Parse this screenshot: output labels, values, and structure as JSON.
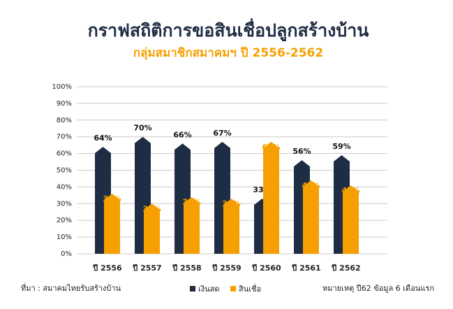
{
  "chart_data": {
    "type": "bar",
    "title": "กราฟสถิติการขอสินเชื่อปลูกสร้างบ้าน",
    "subtitle": "กลุ่มสมาชิกสมาคมฯ ปี 2556-2562",
    "source": "ที่มา : สมาคมไทยรับสร้างบ้าน",
    "note": "หมายเหตุ ปี62  ข้อมูล 6 เดือนแรก",
    "categories": [
      "ปี 2556",
      "ปี 2557",
      "ปี 2558",
      "ปี 2559",
      "ปี 2560",
      "ปี 2561",
      "ปี 2562"
    ],
    "series": [
      {
        "name": "เงินสด",
        "color": "#1f2d44",
        "values": [
          64,
          70,
          66,
          67,
          33,
          56,
          59
        ],
        "value_labels": [
          "64%",
          "70%",
          "66%",
          "67%",
          "33%",
          "56%",
          "59%"
        ]
      },
      {
        "name": "สินเชื่อ",
        "color": "#f5a000",
        "values": [
          36,
          30,
          34,
          33,
          67,
          44,
          41
        ],
        "value_labels": [
          "36%",
          "30%",
          "34%",
          "33%",
          "67%",
          "44%",
          "41%"
        ]
      }
    ],
    "ylim": [
      0,
      100
    ],
    "yticks": [
      {
        "value": 0,
        "label": "0%"
      },
      {
        "value": 10,
        "label": "10%"
      },
      {
        "value": 20,
        "label": "20%"
      },
      {
        "value": 30,
        "label": "30%"
      },
      {
        "value": 40,
        "label": "40%"
      },
      {
        "value": 50,
        "label": "50%"
      },
      {
        "value": 60,
        "label": "60%"
      },
      {
        "value": 70,
        "label": "70%"
      },
      {
        "value": 80,
        "label": "80%"
      },
      {
        "value": 90,
        "label": "90%"
      },
      {
        "value": 100,
        "label": "100%"
      }
    ],
    "grid": true,
    "legend": "bottom"
  }
}
